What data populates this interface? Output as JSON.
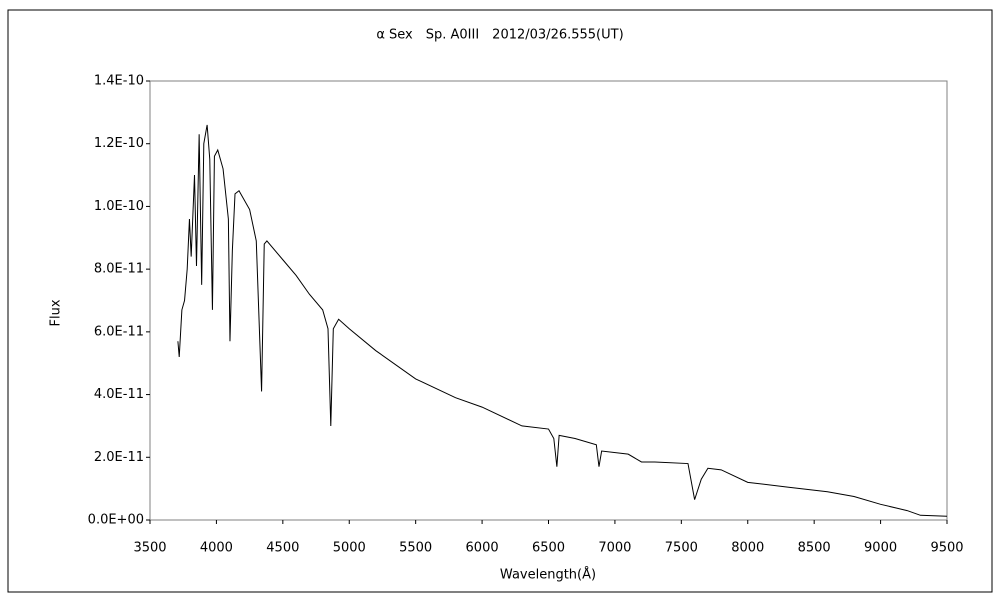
{
  "chart_data": {
    "type": "line",
    "title": "α Sex　Sp. A0III　2012/03/26.555(UT)",
    "xlabel": "Wavelength(Å)",
    "ylabel": "Flux",
    "xlim": [
      3500,
      9500
    ],
    "xticks": [
      3500,
      4000,
      4500,
      5000,
      5500,
      6000,
      6500,
      7000,
      7500,
      8000,
      8500,
      9000,
      9500
    ],
    "ylim": [
      0,
      1.4e-10
    ],
    "yticks": [
      {
        "value": 0,
        "label": "0.0E+00"
      },
      {
        "value": 2e-11,
        "label": "2.0E-11"
      },
      {
        "value": 4e-11,
        "label": "4.0E-11"
      },
      {
        "value": 6e-11,
        "label": "6.0E-11"
      },
      {
        "value": 8e-11,
        "label": "8.0E-11"
      },
      {
        "value": 1e-10,
        "label": "1.0E-10"
      },
      {
        "value": 1.2e-10,
        "label": "1.2E-10"
      },
      {
        "value": 1.4e-10,
        "label": "1.4E-10"
      }
    ],
    "grid": false,
    "color": "#000000",
    "x": [
      3710,
      3720,
      3740,
      3760,
      3780,
      3797,
      3810,
      3835,
      3850,
      3870,
      3889,
      3905,
      3930,
      3950,
      3970,
      3985,
      4010,
      4050,
      4090,
      4102,
      4120,
      4140,
      4170,
      4250,
      4300,
      4340,
      4360,
      4380,
      4500,
      4600,
      4700,
      4800,
      4840,
      4861,
      4880,
      4920,
      5000,
      5200,
      5500,
      5800,
      6000,
      6300,
      6500,
      6540,
      6563,
      6580,
      6700,
      6860,
      6880,
      6900,
      7100,
      7200,
      7300,
      7550,
      7600,
      7650,
      7700,
      7800,
      8000,
      8300,
      8600,
      8800,
      9000,
      9200,
      9300,
      9500
    ],
    "values": [
      5.7e-11,
      5.2e-11,
      6.7e-11,
      7e-11,
      8e-11,
      9.6e-11,
      8.4e-11,
      1.1e-10,
      8.1e-11,
      1.23e-10,
      7.5e-11,
      1.2e-10,
      1.26e-10,
      1.15e-10,
      6.7e-11,
      1.16e-10,
      1.18e-10,
      1.12e-10,
      9.6e-11,
      5.7e-11,
      8.6e-11,
      1.04e-10,
      1.05e-10,
      9.9e-11,
      8.9e-11,
      4.1e-11,
      8.8e-11,
      8.9e-11,
      8.3e-11,
      7.8e-11,
      7.2e-11,
      6.7e-11,
      6.1e-11,
      3e-11,
      6.1e-11,
      6.4e-11,
      6.1e-11,
      5.4e-11,
      4.5e-11,
      3.9e-11,
      3.6e-11,
      3e-11,
      2.9e-11,
      2.6e-11,
      1.7e-11,
      2.7e-11,
      2.6e-11,
      2.4e-11,
      1.7e-11,
      2.2e-11,
      2.1e-11,
      1.85e-11,
      1.85e-11,
      1.8e-11,
      6.5e-12,
      1.3e-11,
      1.65e-11,
      1.6e-11,
      1.2e-11,
      1.05e-11,
      9e-12,
      7.5e-12,
      5e-12,
      3e-12,
      1.5e-12,
      1.2e-12
    ]
  }
}
